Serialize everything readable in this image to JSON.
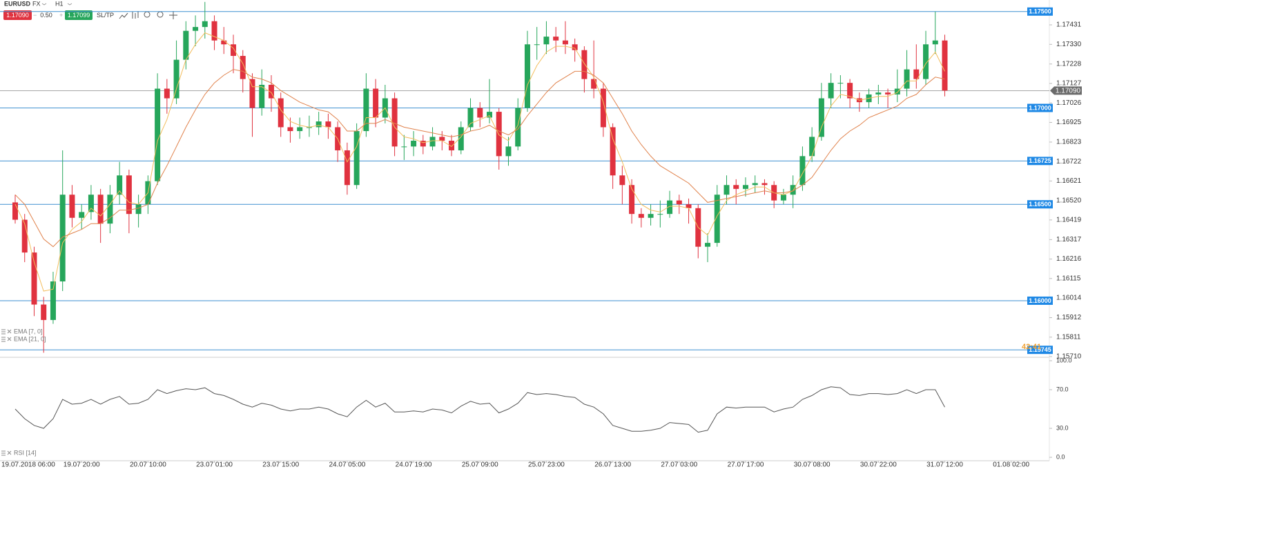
{
  "toolbar": {
    "symbol": "EURUSD",
    "market": "FX",
    "timeframe": "H1",
    "sell": "1.17090",
    "spread": "0.50",
    "buy": "1.17099",
    "sltp": "SL/TP"
  },
  "chart_data": [
    {
      "type": "candlestick",
      "up_color": "#26a65b",
      "down_color": "#e0323f",
      "countdown": "42:41",
      "categories": [
        "19.07.2018 06:00",
        null,
        null,
        null,
        null,
        null,
        null,
        "19.07 20:00",
        null,
        null,
        null,
        null,
        null,
        null,
        "20.07 10:00",
        null,
        null,
        null,
        null,
        null,
        null,
        "23.07 01:00",
        null,
        null,
        null,
        null,
        null,
        null,
        "23.07 15:00",
        null,
        null,
        null,
        null,
        null,
        null,
        "24.07 05:00",
        null,
        null,
        null,
        null,
        null,
        null,
        "24.07 19:00",
        null,
        null,
        null,
        null,
        null,
        null,
        "25.07 09:00",
        null,
        null,
        null,
        null,
        null,
        null,
        "25.07 23:00",
        null,
        null,
        null,
        null,
        null,
        null,
        "26.07 13:00",
        null,
        null,
        null,
        null,
        null,
        null,
        "27.07 03:00",
        null,
        null,
        null,
        null,
        null,
        null,
        "27.07 17:00",
        null,
        null,
        null,
        null,
        null,
        null,
        "30.07 08:00",
        null,
        null,
        null,
        null,
        null,
        null,
        "30.07 22:00",
        null,
        null,
        null,
        null,
        null,
        null,
        "31.07 12:00",
        null,
        null,
        null,
        null,
        null,
        null,
        "01.08 02:00"
      ],
      "candles": [
        [
          1.1651,
          1.1655,
          1.164,
          1.1642
        ],
        [
          1.1642,
          1.1645,
          1.162,
          1.1625
        ],
        [
          1.1625,
          1.1628,
          1.1592,
          1.1598
        ],
        [
          1.1598,
          1.1602,
          1.1573,
          1.159
        ],
        [
          1.159,
          1.1615,
          1.1588,
          1.161
        ],
        [
          1.161,
          1.1678,
          1.1605,
          1.1655
        ],
        [
          1.1655,
          1.166,
          1.1638,
          1.1643
        ],
        [
          1.1643,
          1.165,
          1.1637,
          1.1646
        ],
        [
          1.1646,
          1.166,
          1.1642,
          1.1655
        ],
        [
          1.1655,
          1.1658,
          1.163,
          1.164
        ],
        [
          1.164,
          1.166,
          1.1635,
          1.1655
        ],
        [
          1.1655,
          1.1672,
          1.165,
          1.1665
        ],
        [
          1.1665,
          1.1668,
          1.1635,
          1.1645
        ],
        [
          1.1645,
          1.1655,
          1.1638,
          1.165
        ],
        [
          1.165,
          1.1665,
          1.1645,
          1.1662
        ],
        [
          1.1662,
          1.1718,
          1.166,
          1.171
        ],
        [
          1.171,
          1.1715,
          1.1697,
          1.1705
        ],
        [
          1.1705,
          1.1735,
          1.1702,
          1.1725
        ],
        [
          1.1725,
          1.1745,
          1.172,
          1.174
        ],
        [
          1.174,
          1.1748,
          1.1732,
          1.1742
        ],
        [
          1.1742,
          1.1755,
          1.1736,
          1.1745
        ],
        [
          1.1745,
          1.1748,
          1.173,
          1.1735
        ],
        [
          1.1735,
          1.1742,
          1.1728,
          1.1733
        ],
        [
          1.1733,
          1.1738,
          1.1718,
          1.1727
        ],
        [
          1.1727,
          1.173,
          1.1708,
          1.1715
        ],
        [
          1.1715,
          1.1718,
          1.1685,
          1.17
        ],
        [
          1.17,
          1.172,
          1.1696,
          1.1712
        ],
        [
          1.1712,
          1.1717,
          1.1698,
          1.1705
        ],
        [
          1.1705,
          1.1708,
          1.1685,
          1.169
        ],
        [
          1.169,
          1.1695,
          1.1682,
          1.1688
        ],
        [
          1.1688,
          1.1695,
          1.1684,
          1.169
        ],
        [
          1.169,
          1.1696,
          1.1685,
          1.169
        ],
        [
          1.169,
          1.1698,
          1.1686,
          1.1693
        ],
        [
          1.1693,
          1.1697,
          1.1684,
          1.169
        ],
        [
          1.169,
          1.1693,
          1.1672,
          1.1678
        ],
        [
          1.1678,
          1.1682,
          1.1655,
          1.166
        ],
        [
          1.166,
          1.1692,
          1.1658,
          1.1688
        ],
        [
          1.1688,
          1.1718,
          1.1685,
          1.171
        ],
        [
          1.171,
          1.1715,
          1.169,
          1.1695
        ],
        [
          1.1695,
          1.1712,
          1.1692,
          1.1705
        ],
        [
          1.1705,
          1.1708,
          1.1675,
          1.168
        ],
        [
          1.168,
          1.1686,
          1.1673,
          1.168
        ],
        [
          1.168,
          1.1688,
          1.1675,
          1.1683
        ],
        [
          1.1683,
          1.1686,
          1.1676,
          1.168
        ],
        [
          1.168,
          1.169,
          1.1678,
          1.1685
        ],
        [
          1.1685,
          1.1688,
          1.1678,
          1.1683
        ],
        [
          1.1683,
          1.1686,
          1.1675,
          1.1678
        ],
        [
          1.1678,
          1.1693,
          1.1676,
          1.169
        ],
        [
          1.169,
          1.1705,
          1.1688,
          1.17
        ],
        [
          1.17,
          1.1703,
          1.169,
          1.1695
        ],
        [
          1.1695,
          1.1715,
          1.1692,
          1.1698
        ],
        [
          1.1698,
          1.17,
          1.1668,
          1.1675
        ],
        [
          1.1675,
          1.1685,
          1.167,
          1.168
        ],
        [
          1.168,
          1.1705,
          1.1678,
          1.17
        ],
        [
          1.17,
          1.174,
          1.1698,
          1.1733
        ],
        [
          1.1733,
          1.1742,
          1.1725,
          1.1733
        ],
        [
          1.1733,
          1.1745,
          1.1728,
          1.1737
        ],
        [
          1.1737,
          1.1742,
          1.1729,
          1.1735
        ],
        [
          1.1735,
          1.1745,
          1.1728,
          1.1733
        ],
        [
          1.1733,
          1.1736,
          1.1724,
          1.173
        ],
        [
          1.173,
          1.1732,
          1.1708,
          1.1715
        ],
        [
          1.1715,
          1.1735,
          1.1705,
          1.171
        ],
        [
          1.171,
          1.1713,
          1.1685,
          1.169
        ],
        [
          1.169,
          1.1692,
          1.1658,
          1.1665
        ],
        [
          1.1665,
          1.167,
          1.165,
          1.166
        ],
        [
          1.166,
          1.1663,
          1.164,
          1.1645
        ],
        [
          1.1645,
          1.1648,
          1.1638,
          1.1643
        ],
        [
          1.1643,
          1.165,
          1.1639,
          1.1645
        ],
        [
          1.1645,
          1.1652,
          1.1638,
          1.1645
        ],
        [
          1.1645,
          1.1657,
          1.1643,
          1.1652
        ],
        [
          1.1652,
          1.1655,
          1.1645,
          1.165
        ],
        [
          1.165,
          1.1653,
          1.164,
          1.1648
        ],
        [
          1.1648,
          1.165,
          1.1622,
          1.1628
        ],
        [
          1.1628,
          1.1635,
          1.162,
          1.163
        ],
        [
          1.163,
          1.166,
          1.1628,
          1.1655
        ],
        [
          1.1655,
          1.1665,
          1.165,
          1.166
        ],
        [
          1.166,
          1.1663,
          1.165,
          1.1658
        ],
        [
          1.1658,
          1.1664,
          1.1654,
          1.166
        ],
        [
          1.166,
          1.1665,
          1.1656,
          1.1661
        ],
        [
          1.1661,
          1.1663,
          1.1655,
          1.166
        ],
        [
          1.166,
          1.1662,
          1.1648,
          1.1652
        ],
        [
          1.1652,
          1.1658,
          1.165,
          1.1655
        ],
        [
          1.1655,
          1.1665,
          1.1648,
          1.166
        ],
        [
          1.166,
          1.168,
          1.1657,
          1.1675
        ],
        [
          1.1675,
          1.169,
          1.1672,
          1.1685
        ],
        [
          1.1685,
          1.1713,
          1.1683,
          1.1705
        ],
        [
          1.1705,
          1.1718,
          1.17,
          1.1713
        ],
        [
          1.1713,
          1.1717,
          1.1705,
          1.1713
        ],
        [
          1.1713,
          1.1715,
          1.17,
          1.1705
        ],
        [
          1.1705,
          1.1708,
          1.1698,
          1.1703
        ],
        [
          1.1703,
          1.171,
          1.17,
          1.1707
        ],
        [
          1.1707,
          1.1712,
          1.1702,
          1.1708
        ],
        [
          1.1708,
          1.171,
          1.17,
          1.1707
        ],
        [
          1.1707,
          1.172,
          1.1703,
          1.171
        ],
        [
          1.171,
          1.173,
          1.1706,
          1.172
        ],
        [
          1.172,
          1.1733,
          1.171,
          1.1715
        ],
        [
          1.1715,
          1.174,
          1.1712,
          1.1733
        ],
        [
          1.1733,
          1.175,
          1.1728,
          1.1735
        ],
        [
          1.1735,
          1.1738,
          1.1706,
          1.1709
        ],
        null,
        null,
        null,
        null,
        null,
        null,
        null
      ],
      "series": [
        {
          "name": "EMA [7, 0]",
          "color": "#f3bd5c",
          "values": [
            1.165,
            1.164,
            1.162,
            1.1605,
            1.1606,
            1.163,
            1.1637,
            1.1641,
            1.1648,
            1.1644,
            1.165,
            1.1657,
            1.1651,
            1.165,
            1.1656,
            1.1683,
            1.1694,
            1.171,
            1.1725,
            1.1733,
            1.1739,
            1.1737,
            1.1735,
            1.1731,
            1.1723,
            1.1711,
            1.1711,
            1.1708,
            1.1699,
            1.1693,
            1.1691,
            1.169,
            1.1691,
            1.169,
            1.1684,
            1.1672,
            1.168,
            1.1695,
            1.1695,
            1.17,
            1.169,
            1.1685,
            1.1684,
            1.1682,
            1.1683,
            1.1683,
            1.168,
            1.1685,
            1.1692,
            1.1694,
            1.1696,
            1.1686,
            1.1683,
            1.1691,
            1.1712,
            1.1722,
            1.1729,
            1.1732,
            1.1732,
            1.1731,
            1.1723,
            1.1716,
            1.1703,
            1.1684,
            1.1672,
            1.1658,
            1.165,
            1.1647,
            1.1646,
            1.1649,
            1.1649,
            1.1648,
            1.1638,
            1.1634,
            1.1644,
            1.1652,
            1.1655,
            1.1657,
            1.1659,
            1.1659,
            1.1656,
            1.1655,
            1.1657,
            1.1666,
            1.1675,
            1.169,
            1.1701,
            1.1707,
            1.1706,
            1.1704,
            1.1705,
            1.1706,
            1.1706,
            1.1708,
            1.1714,
            1.1714,
            1.1723,
            1.1729,
            1.1719,
            null,
            null,
            null,
            null,
            null,
            null,
            null
          ]
        },
        {
          "name": "EMA [21, 0]",
          "color": "#e0824c",
          "values": [
            1.1655,
            1.165,
            1.1641,
            1.1632,
            1.1628,
            1.1633,
            1.1635,
            1.1637,
            1.164,
            1.164,
            1.1643,
            1.1647,
            1.1647,
            1.1648,
            1.165,
            1.1661,
            1.167,
            1.168,
            1.169,
            1.1699,
            1.1707,
            1.1713,
            1.1717,
            1.172,
            1.1719,
            1.1716,
            1.1715,
            1.1713,
            1.1709,
            1.1706,
            1.1703,
            1.1701,
            1.1699,
            1.1698,
            1.1694,
            1.1688,
            1.1688,
            1.1692,
            1.1692,
            1.1694,
            1.1692,
            1.169,
            1.1689,
            1.1688,
            1.1687,
            1.1686,
            1.1685,
            1.1686,
            1.1688,
            1.1689,
            1.1691,
            1.1688,
            1.1686,
            1.1689,
            1.1696,
            1.1702,
            1.1708,
            1.1713,
            1.1716,
            1.1719,
            1.1719,
            1.1717,
            1.1713,
            1.1705,
            1.1697,
            1.1688,
            1.1681,
            1.1675,
            1.167,
            1.1667,
            1.1664,
            1.1661,
            1.1656,
            1.1651,
            1.1652,
            1.1653,
            1.1654,
            1.1655,
            1.1656,
            1.1657,
            1.1656,
            1.1656,
            1.1657,
            1.166,
            1.1664,
            1.1671,
            1.1678,
            1.1684,
            1.1688,
            1.1691,
            1.1695,
            1.1697,
            1.1699,
            1.1701,
            1.1705,
            1.1707,
            1.1712,
            1.1716,
            1.1715,
            null,
            null,
            null,
            null,
            null,
            null,
            null
          ]
        }
      ],
      "ylim": [
        1.1571,
        1.1756
      ],
      "yticks": [
        {
          "value": 1.17431,
          "label": "1.17431"
        },
        {
          "value": 1.1733,
          "label": "1.17330"
        },
        {
          "value": 1.17228,
          "label": "1.17228"
        },
        {
          "value": 1.17127,
          "label": "1.17127"
        },
        {
          "value": 1.17026,
          "label": "1.17026"
        },
        {
          "value": 1.16925,
          "label": "1.16925"
        },
        {
          "value": 1.16823,
          "label": "1.16823"
        },
        {
          "value": 1.16722,
          "label": "1.16722"
        },
        {
          "value": 1.16621,
          "label": "1.16621"
        },
        {
          "value": 1.1652,
          "label": "1.16520"
        },
        {
          "value": 1.16419,
          "label": "1.16419"
        },
        {
          "value": 1.16317,
          "label": "1.16317"
        },
        {
          "value": 1.16216,
          "label": "1.16216"
        },
        {
          "value": 1.16115,
          "label": "1.16115"
        },
        {
          "value": 1.16014,
          "label": "1.16014"
        },
        {
          "value": 1.15912,
          "label": "1.15912"
        },
        {
          "value": 1.15811,
          "label": "1.15811"
        },
        {
          "value": 1.1571,
          "label": "1.15710"
        }
      ],
      "hlines": [
        {
          "value": 1.175,
          "label": "1.17500"
        },
        {
          "value": 1.17,
          "label": "1.17000"
        },
        {
          "value": 1.16725,
          "label": "1.16725"
        },
        {
          "value": 1.165,
          "label": "1.16500"
        },
        {
          "value": 1.16,
          "label": "1.16000"
        },
        {
          "value": 1.15745,
          "label": "1.15745"
        }
      ],
      "hline_color": "#3d8fd1",
      "last_price": {
        "value": 1.1709,
        "label": "1.17090"
      }
    },
    {
      "type": "line",
      "title": "RSI [14]",
      "color": "#555555",
      "values": [
        50,
        40,
        33,
        30,
        40,
        60,
        55,
        56,
        60,
        55,
        60,
        63,
        55,
        56,
        60,
        70,
        66,
        69,
        71,
        70,
        72,
        66,
        64,
        60,
        55,
        52,
        56,
        54,
        50,
        48,
        50,
        50,
        52,
        50,
        45,
        42,
        52,
        59,
        52,
        56,
        47,
        47,
        48,
        47,
        50,
        49,
        46,
        53,
        58,
        55,
        56,
        46,
        50,
        56,
        67,
        65,
        66,
        65,
        63,
        62,
        55,
        52,
        45,
        33,
        30,
        27,
        27,
        28,
        30,
        36,
        35,
        34,
        26,
        28,
        45,
        52,
        51,
        52,
        52,
        52,
        47,
        50,
        52,
        60,
        64,
        70,
        73,
        72,
        65,
        64,
        66,
        66,
        65,
        66,
        70,
        66,
        70,
        70,
        52,
        null,
        null,
        null,
        null,
        null,
        null,
        null
      ],
      "ylim": [
        0,
        100
      ],
      "yticks": [
        {
          "value": 0,
          "label": "0.0"
        },
        {
          "value": 30,
          "label": "30.0"
        },
        {
          "value": 70,
          "label": "70.0"
        },
        {
          "value": 100,
          "label": "100.0"
        }
      ]
    }
  ]
}
